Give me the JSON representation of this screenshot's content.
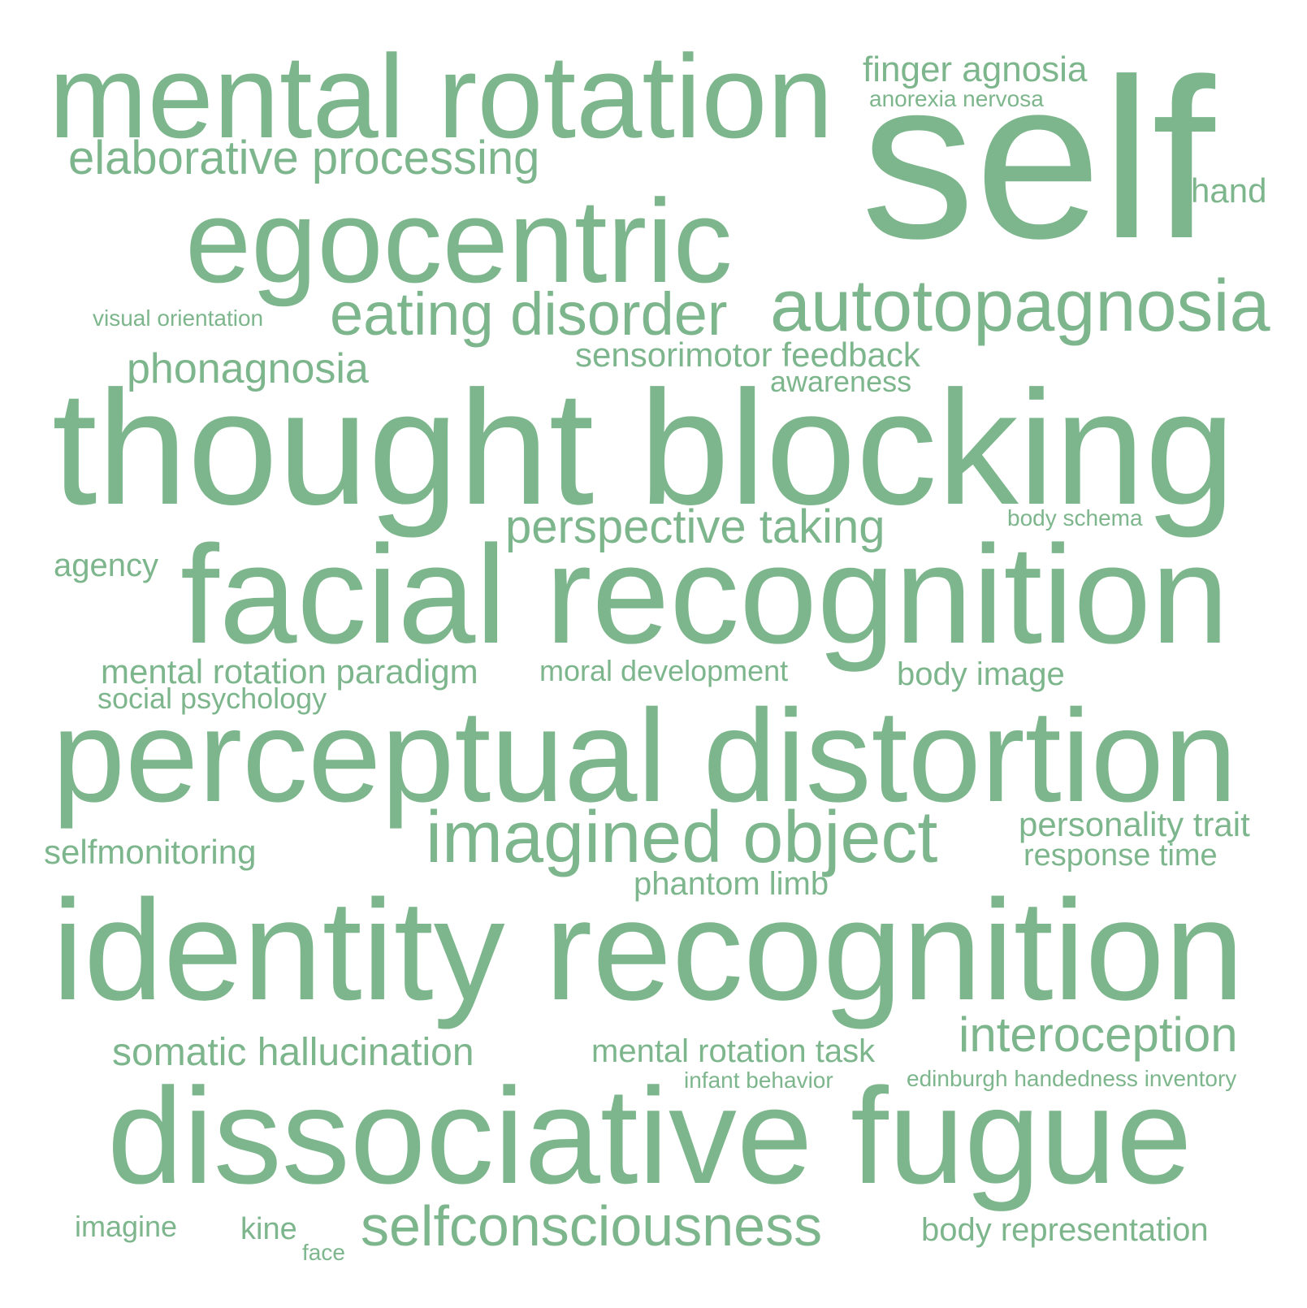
{
  "color": "#7db68c",
  "words": [
    "mental rotation",
    "finger agnosia",
    "anorexia nervosa",
    "self",
    "elaborative processing",
    "hand",
    "egocentric",
    "autotopagnosia",
    "visual orientation",
    "eating disorder",
    "sensorimotor feedback",
    "phonagnosia",
    "awareness",
    "thought blocking",
    "perspective taking",
    "body schema",
    "agency",
    "facial recognition",
    "mental rotation paradigm",
    "moral development",
    "body image",
    "social psychology",
    "perceptual distortion",
    "personality trait",
    "imagined object",
    "selfmonitoring",
    "response time",
    "phantom limb",
    "identity recognition",
    "interoception",
    "somatic hallucination",
    "mental rotation task",
    "infant behavior",
    "edinburgh handedness inventory",
    "dissociative fugue",
    "imagine",
    "kine",
    "selfconsciousness",
    "body representation",
    "face"
  ]
}
